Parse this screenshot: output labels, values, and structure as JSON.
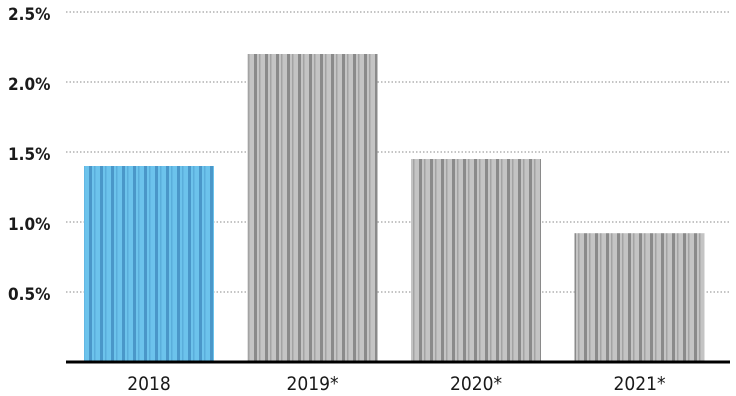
{
  "chart_data": {
    "type": "bar",
    "categories": [
      "2018",
      "2019*",
      "2020*",
      "2021*"
    ],
    "values": [
      1.4,
      2.2,
      1.45,
      0.92
    ],
    "ylim": [
      0,
      2.5
    ],
    "yticks": [
      0.5,
      1.0,
      1.5,
      2.0,
      2.5
    ],
    "ytick_labels": [
      "0.5%",
      "1.0%",
      "1.5%",
      "2.0%",
      "2.5%"
    ],
    "title": "",
    "xlabel": "",
    "ylabel": "",
    "grid": true,
    "legend": "none",
    "colors": {
      "highlight": "#6cc3ec",
      "highlight_stripe": "#3f8fc2",
      "default": "#bcbcbc",
      "default_stripe": "#7e7e7e"
    },
    "highlight_index": 0
  }
}
